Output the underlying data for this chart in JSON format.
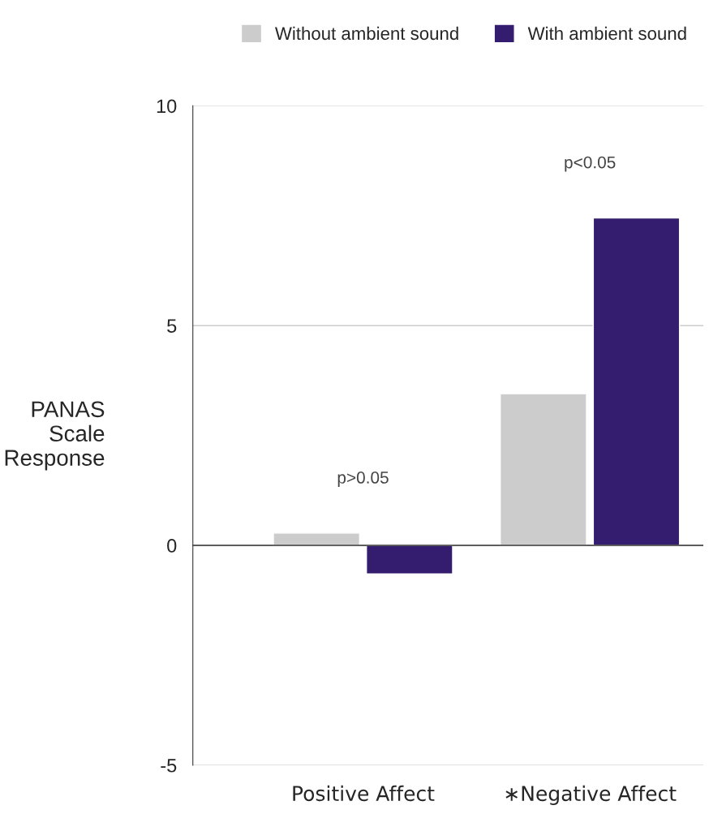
{
  "chart_data": {
    "type": "bar",
    "ylabel": "PANAS\nScale\nResponse",
    "categories": [
      "Positive Affect",
      "∗Negative Affect"
    ],
    "series": [
      {
        "name": "Without ambient sound",
        "color": "#cccccc",
        "values": [
          0.28,
          3.45
        ]
      },
      {
        "name": "With ambient sound",
        "color": "#341c6e",
        "values": [
          -0.65,
          7.45
        ]
      }
    ],
    "ylim": [
      -5,
      10
    ],
    "yticks": [
      -5,
      0,
      5,
      10
    ],
    "grid": "y",
    "legend": "top right",
    "annotations": [
      "p>0.05",
      "p<0.05"
    ]
  }
}
